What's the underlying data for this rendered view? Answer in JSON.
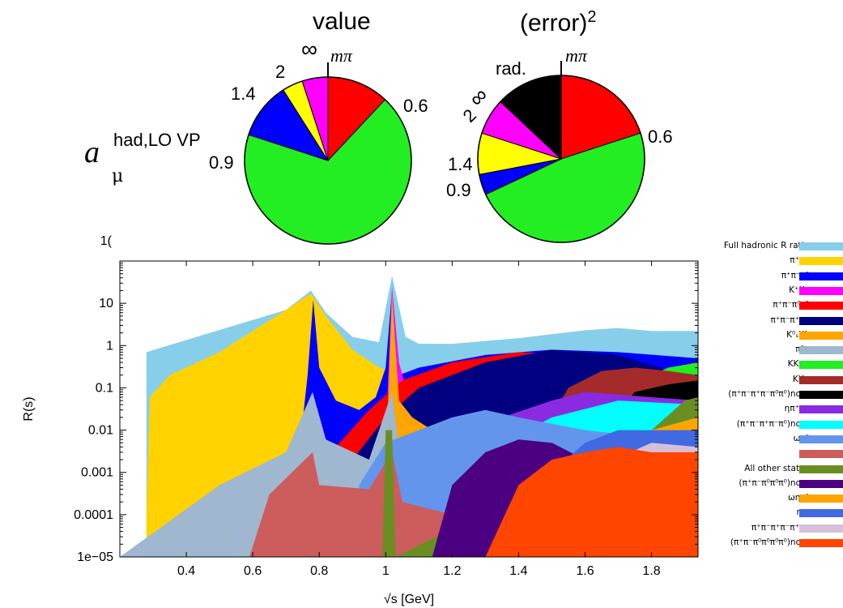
{
  "pie_charts": {
    "value": {
      "title": "value",
      "ylabel_main": "a",
      "ylabel_sup": "had,LO VP",
      "ylabel_sub": "μ",
      "slices": [
        {
          "label": "mπ – 0.6",
          "fraction": 0.12,
          "color": "#ff0000"
        },
        {
          "label": "0.6 – 0.9",
          "fraction": 0.68,
          "color": "#22ee22"
        },
        {
          "label": "0.9 – 1.4",
          "fraction": 0.11,
          "color": "#0000ff"
        },
        {
          "label": "1.4 – 2",
          "fraction": 0.04,
          "color": "#ffff00"
        },
        {
          "label": "2 – ∞",
          "fraction": 0.05,
          "color": "#ff00ff"
        }
      ],
      "boundary_labels": [
        "mπ",
        "0.6",
        "0.9",
        "1.4",
        "2",
        "∞"
      ]
    },
    "error": {
      "title": "(error)",
      "title_sup": "2",
      "slices": [
        {
          "label": "mπ – 0.6",
          "fraction": 0.2,
          "color": "#ff0000"
        },
        {
          "label": "0.6 – 0.9",
          "fraction": 0.48,
          "color": "#22ee22"
        },
        {
          "label": "0.9 – 1.4",
          "fraction": 0.04,
          "color": "#0000ff"
        },
        {
          "label": "1.4 – 2",
          "fraction": 0.08,
          "color": "#ffff00"
        },
        {
          "label": "2 – ∞",
          "fraction": 0.07,
          "color": "#ff00ff"
        },
        {
          "label": "rad.",
          "fraction": 0.13,
          "color": "#000000"
        }
      ],
      "boundary_labels": [
        "mπ",
        "0.6",
        "0.9",
        "1.4",
        "2",
        "∞",
        "rad."
      ]
    }
  },
  "chart_data": {
    "type": "area",
    "xlabel": "√s [GeV]",
    "ylabel": "R(s)",
    "xlim": [
      0.2,
      1.94
    ],
    "ylim": [
      1e-05,
      100
    ],
    "yscale": "log",
    "xticks": [
      "0.4",
      "0.6",
      "0.8",
      "1",
      "1.2",
      "1.4",
      "1.6",
      "1.8"
    ],
    "yticks": [
      "1e−05",
      "0.0001",
      "0.001",
      "0.01",
      "0.1",
      "1",
      "10"
    ],
    "top_tick_partial": "1(",
    "legend_position": "right",
    "series": [
      {
        "name": "Full hadronic R ratio",
        "color": "#87ceeb",
        "points": [
          [
            0.28,
            0.7
          ],
          [
            0.7,
            7
          ],
          [
            0.775,
            20
          ],
          [
            0.82,
            6
          ],
          [
            0.9,
            1.6
          ],
          [
            0.98,
            1.2
          ],
          [
            1.019,
            45
          ],
          [
            1.06,
            1.6
          ],
          [
            1.1,
            1.1
          ],
          [
            1.2,
            1.1
          ],
          [
            1.4,
            1.5
          ],
          [
            1.6,
            2.3
          ],
          [
            1.7,
            2.6
          ],
          [
            1.8,
            2.2
          ],
          [
            1.94,
            2.2
          ]
        ]
      },
      {
        "name": "π⁺π⁻",
        "color": "#ffd200",
        "points": [
          [
            0.28,
            0.0001
          ],
          [
            0.29,
            0.06
          ],
          [
            0.35,
            0.2
          ],
          [
            0.5,
            0.7
          ],
          [
            0.7,
            7
          ],
          [
            0.775,
            17
          ],
          [
            0.82,
            5
          ],
          [
            0.9,
            0.8
          ],
          [
            0.98,
            0.3
          ],
          [
            1.05,
            0.2
          ],
          [
            1.2,
            0.15
          ],
          [
            1.4,
            0.08
          ],
          [
            1.6,
            0.02
          ],
          [
            1.8,
            0.008
          ],
          [
            1.94,
            0.005
          ]
        ]
      },
      {
        "name": "π⁺π⁻π⁰",
        "color": "#0000ff",
        "points": [
          [
            0.74,
            0.003
          ],
          [
            0.765,
            0.2
          ],
          [
            0.782,
            12
          ],
          [
            0.8,
            0.3
          ],
          [
            0.85,
            0.05
          ],
          [
            0.92,
            0.03
          ],
          [
            0.97,
            0.06
          ],
          [
            1.0,
            0.3
          ],
          [
            1.019,
            20
          ],
          [
            1.04,
            0.2
          ],
          [
            1.1,
            0.3
          ],
          [
            1.3,
            0.6
          ],
          [
            1.5,
            0.8
          ],
          [
            1.7,
            0.7
          ],
          [
            1.94,
            0.5
          ]
        ]
      },
      {
        "name": "K⁺K⁻",
        "color": "#ff00ff",
        "points": [
          [
            0.99,
            0.0001
          ],
          [
            1.019,
            25
          ],
          [
            1.04,
            0.4
          ],
          [
            1.06,
            0.1
          ],
          [
            1.2,
            0.05
          ],
          [
            1.5,
            0.05
          ],
          [
            1.94,
            0.03
          ]
        ]
      },
      {
        "name": "π⁺π⁻π⁰π⁰",
        "color": "#ff0000",
        "points": [
          [
            0.85,
            0.004
          ],
          [
            0.95,
            0.03
          ],
          [
            1.05,
            0.15
          ],
          [
            1.2,
            0.4
          ],
          [
            1.4,
            0.7
          ],
          [
            1.6,
            0.6
          ],
          [
            1.8,
            0.3
          ],
          [
            1.94,
            0.2
          ]
        ]
      },
      {
        "name": "π⁺π⁻π⁺π⁻",
        "color": "#000080",
        "points": [
          [
            0.9,
            0.002
          ],
          [
            1.0,
            0.02
          ],
          [
            1.1,
            0.1
          ],
          [
            1.3,
            0.4
          ],
          [
            1.5,
            0.8
          ],
          [
            1.7,
            0.6
          ],
          [
            1.9,
            0.2
          ],
          [
            1.94,
            0.15
          ]
        ]
      },
      {
        "name": "K⁰ₛK⁰ₗ",
        "color": "#ffa500",
        "points": [
          [
            1.0,
            0.001
          ],
          [
            1.019,
            18
          ],
          [
            1.04,
            0.05
          ],
          [
            1.08,
            0.02
          ],
          [
            1.2,
            0.005
          ],
          [
            1.6,
            0.01
          ],
          [
            1.8,
            0.03
          ],
          [
            1.94,
            0.02
          ]
        ]
      },
      {
        "name": "π⁰γ",
        "color": "#9fb7cf",
        "points": [
          [
            0.2,
            1e-05
          ],
          [
            0.5,
            0.0005
          ],
          [
            0.7,
            0.003
          ],
          [
            0.78,
            0.08
          ],
          [
            0.82,
            0.006
          ],
          [
            0.95,
            0.002
          ],
          [
            1.019,
            0.08
          ],
          [
            1.05,
            0.001
          ],
          [
            1.1,
            0.0002
          ],
          [
            1.2,
            5e-05
          ]
        ]
      },
      {
        "name": "KKππ",
        "color": "#22ee22",
        "points": [
          [
            1.75,
            0.001
          ],
          [
            1.8,
            0.2
          ],
          [
            1.85,
            0.3
          ],
          [
            1.9,
            0.35
          ],
          [
            1.94,
            0.4
          ]
        ]
      },
      {
        "name": "KKπ",
        "color": "#a52a2a",
        "points": [
          [
            1.45,
            0.005
          ],
          [
            1.55,
            0.1
          ],
          [
            1.65,
            0.25
          ],
          [
            1.75,
            0.3
          ],
          [
            1.85,
            0.25
          ],
          [
            1.94,
            0.2
          ]
        ]
      },
      {
        "name": "(π⁺π⁻π⁺π⁻π⁰π⁰)no η",
        "color": "#000000",
        "points": [
          [
            1.65,
            0.01
          ],
          [
            1.75,
            0.08
          ],
          [
            1.85,
            0.12
          ],
          [
            1.94,
            0.15
          ]
        ]
      },
      {
        "name": "ηπ⁺π⁻",
        "color": "#8a2be2",
        "points": [
          [
            1.2,
            0.003
          ],
          [
            1.35,
            0.02
          ],
          [
            1.5,
            0.05
          ],
          [
            1.6,
            0.08
          ],
          [
            1.8,
            0.06
          ],
          [
            1.94,
            0.05
          ]
        ]
      },
      {
        "name": "(π⁺π⁻π⁺π⁻π⁰)no η",
        "color": "#00ffff",
        "points": [
          [
            1.3,
            0.003
          ],
          [
            1.5,
            0.02
          ],
          [
            1.7,
            0.05
          ],
          [
            1.94,
            0.04
          ]
        ]
      },
      {
        "name": "ωπ⁰",
        "color": "#6495ed",
        "points": [
          [
            0.92,
            0.0005
          ],
          [
            1.0,
            0.005
          ],
          [
            1.1,
            0.01
          ],
          [
            1.2,
            0.02
          ],
          [
            1.3,
            0.03
          ],
          [
            1.4,
            0.02
          ],
          [
            1.6,
            0.01
          ],
          [
            1.94,
            0.005
          ]
        ]
      },
      {
        "name": "ηγ",
        "color": "#cd5c5c",
        "points": [
          [
            0.59,
            1e-05
          ],
          [
            0.65,
            0.0003
          ],
          [
            0.78,
            0.003
          ],
          [
            0.8,
            0.0005
          ],
          [
            0.95,
            0.0004
          ],
          [
            1.019,
            0.003
          ],
          [
            1.05,
            0.0002
          ],
          [
            1.2,
            0.0001
          ],
          [
            1.3,
            1e-05
          ]
        ]
      },
      {
        "name": "All other states",
        "color": "#6b8e23",
        "points": [
          [
            0.99,
            1e-05
          ],
          [
            1.0,
            0.01
          ],
          [
            1.019,
            0.01
          ],
          [
            1.03,
            1e-05
          ],
          [
            1.8,
            0.01
          ],
          [
            1.9,
            0.05
          ],
          [
            1.94,
            0.06
          ]
        ]
      },
      {
        "name": "(π⁺π⁻π⁰π⁰π⁰)no η",
        "color": "#4b0082",
        "points": [
          [
            1.14,
            1e-05
          ],
          [
            1.2,
            0.0005
          ],
          [
            1.3,
            0.003
          ],
          [
            1.4,
            0.006
          ],
          [
            1.5,
            0.005
          ],
          [
            1.6,
            0.002
          ],
          [
            1.94,
            0.001
          ]
        ]
      },
      {
        "name": "ωηπ⁰",
        "color": "#ffa500",
        "points": [
          [
            1.5,
            0.0001
          ],
          [
            1.7,
            0.002
          ],
          [
            1.8,
            0.01
          ],
          [
            1.94,
            0.02
          ]
        ]
      },
      {
        "name": "ηω",
        "color": "#4169e1",
        "points": [
          [
            1.35,
            1e-05
          ],
          [
            1.4,
            0.0001
          ],
          [
            1.5,
            0.001
          ],
          [
            1.6,
            0.005
          ],
          [
            1.7,
            0.01
          ],
          [
            1.94,
            0.01
          ]
        ]
      },
      {
        "name": "π⁺π⁻π⁺π⁻π⁺π⁻",
        "color": "#d8bfd8",
        "points": [
          [
            1.45,
            0.0001
          ],
          [
            1.6,
            0.001
          ],
          [
            1.8,
            0.005
          ],
          [
            1.94,
            0.004
          ]
        ]
      },
      {
        "name": "(π⁺π⁻π⁰π⁰π⁰π⁰)no η",
        "color": "#ff4500",
        "points": [
          [
            1.3,
            1e-05
          ],
          [
            1.4,
            0.0005
          ],
          [
            1.5,
            0.002
          ],
          [
            1.6,
            0.003
          ],
          [
            1.7,
            0.004
          ],
          [
            1.8,
            0.003
          ],
          [
            1.94,
            0.003
          ]
        ]
      }
    ]
  }
}
